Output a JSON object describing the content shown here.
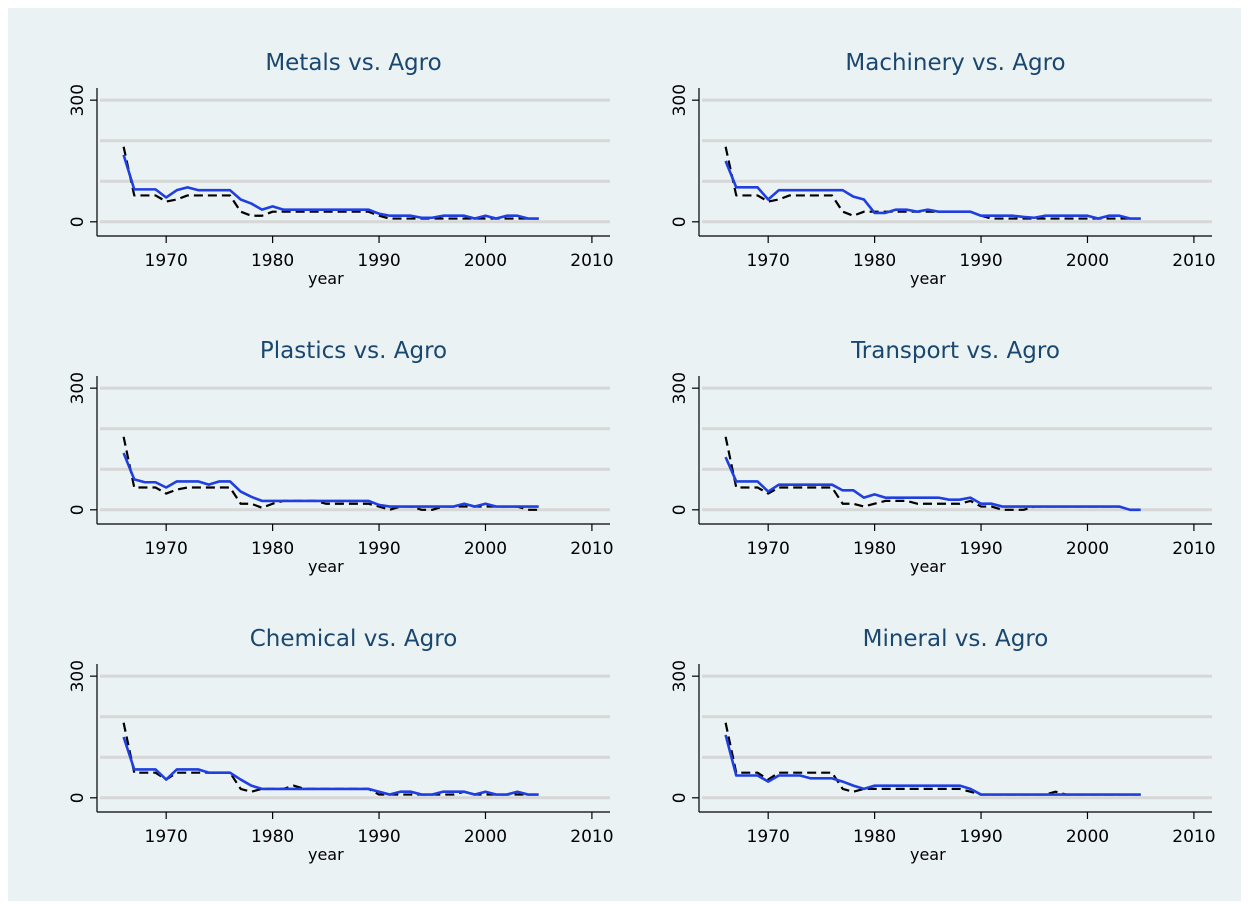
{
  "chart_data": [
    {
      "type": "line",
      "title": "Metals vs. Agro",
      "xlabel": "year",
      "x": [
        1966,
        1967,
        1968,
        1969,
        1970,
        1971,
        1972,
        1973,
        1974,
        1975,
        1976,
        1977,
        1978,
        1979,
        1980,
        1981,
        1982,
        1983,
        1984,
        1985,
        1986,
        1987,
        1988,
        1989,
        1990,
        1991,
        1992,
        1993,
        1994,
        1995,
        1996,
        1997,
        1998,
        1999,
        2000,
        2001,
        2002,
        2003,
        2004,
        2005
      ],
      "series": [
        {
          "color": "#000000",
          "dash": "dashed",
          "values": [
            185,
            65,
            65,
            65,
            50,
            55,
            65,
            65,
            65,
            65,
            65,
            25,
            15,
            15,
            25,
            25,
            25,
            25,
            25,
            25,
            25,
            25,
            25,
            25,
            15,
            8,
            8,
            8,
            8,
            8,
            8,
            8,
            8,
            8,
            8,
            8,
            8,
            8,
            8,
            8
          ]
        },
        {
          "color": "#1f3fe0",
          "dash": "solid",
          "values": [
            165,
            80,
            80,
            80,
            60,
            78,
            85,
            78,
            78,
            78,
            78,
            55,
            45,
            30,
            38,
            30,
            30,
            30,
            30,
            30,
            30,
            30,
            30,
            30,
            20,
            15,
            15,
            15,
            10,
            10,
            15,
            15,
            15,
            8,
            15,
            8,
            15,
            15,
            8,
            8
          ]
        }
      ],
      "xlim": [
        1963.5,
        2011.7
      ],
      "xticks": [
        1970,
        1980,
        1990,
        2000,
        2010
      ],
      "ylim": [
        -35,
        330
      ],
      "yticks": [
        0,
        300
      ],
      "grid_lines": [
        0,
        100,
        200,
        300
      ]
    },
    {
      "type": "line",
      "title": "Machinery vs. Agro",
      "xlabel": "year",
      "x": [
        1966,
        1967,
        1968,
        1969,
        1970,
        1971,
        1972,
        1973,
        1974,
        1975,
        1976,
        1977,
        1978,
        1979,
        1980,
        1981,
        1982,
        1983,
        1984,
        1985,
        1986,
        1987,
        1988,
        1989,
        1990,
        1991,
        1992,
        1993,
        1994,
        1995,
        1996,
        1997,
        1998,
        1999,
        2000,
        2001,
        2002,
        2003,
        2004,
        2005
      ],
      "series": [
        {
          "color": "#000000",
          "dash": "dashed",
          "values": [
            185,
            65,
            65,
            65,
            50,
            55,
            65,
            65,
            65,
            65,
            65,
            25,
            15,
            25,
            25,
            25,
            25,
            25,
            25,
            25,
            25,
            25,
            25,
            25,
            15,
            8,
            8,
            8,
            8,
            8,
            8,
            8,
            8,
            8,
            8,
            8,
            8,
            8,
            8,
            8
          ]
        },
        {
          "color": "#1f3fe0",
          "dash": "solid",
          "values": [
            150,
            85,
            85,
            85,
            55,
            78,
            78,
            78,
            78,
            78,
            78,
            78,
            62,
            55,
            22,
            22,
            30,
            30,
            25,
            30,
            25,
            25,
            25,
            25,
            15,
            15,
            15,
            15,
            12,
            10,
            15,
            15,
            15,
            15,
            15,
            8,
            15,
            15,
            8,
            8
          ]
        }
      ],
      "xlim": [
        1963.5,
        2011.7
      ],
      "xticks": [
        1970,
        1980,
        1990,
        2000,
        2010
      ],
      "ylim": [
        -35,
        330
      ],
      "yticks": [
        0,
        300
      ],
      "grid_lines": [
        0,
        100,
        200,
        300
      ]
    },
    {
      "type": "line",
      "title": "Plastics vs. Agro",
      "xlabel": "year",
      "x": [
        1966,
        1967,
        1968,
        1969,
        1970,
        1971,
        1972,
        1973,
        1974,
        1975,
        1976,
        1977,
        1978,
        1979,
        1980,
        1981,
        1982,
        1983,
        1984,
        1985,
        1986,
        1987,
        1988,
        1989,
        1990,
        1991,
        1992,
        1993,
        1994,
        1995,
        1996,
        1997,
        1998,
        1999,
        2000,
        2001,
        2002,
        2003,
        2004,
        2005
      ],
      "series": [
        {
          "color": "#000000",
          "dash": "dashed",
          "values": [
            180,
            55,
            55,
            55,
            40,
            50,
            55,
            55,
            55,
            55,
            55,
            15,
            15,
            5,
            15,
            22,
            22,
            22,
            22,
            15,
            15,
            15,
            15,
            15,
            8,
            0,
            8,
            8,
            0,
            0,
            8,
            8,
            8,
            8,
            8,
            8,
            8,
            8,
            0,
            0
          ]
        },
        {
          "color": "#1f3fe0",
          "dash": "solid",
          "values": [
            140,
            75,
            68,
            68,
            55,
            70,
            70,
            70,
            62,
            70,
            70,
            45,
            32,
            22,
            22,
            22,
            22,
            22,
            22,
            22,
            22,
            22,
            22,
            22,
            12,
            8,
            8,
            8,
            8,
            8,
            8,
            8,
            15,
            8,
            15,
            8,
            8,
            8,
            8,
            8
          ]
        }
      ],
      "xlim": [
        1963.5,
        2011.7
      ],
      "xticks": [
        1970,
        1980,
        1990,
        2000,
        2010
      ],
      "ylim": [
        -35,
        330
      ],
      "yticks": [
        0,
        300
      ],
      "grid_lines": [
        0,
        100,
        200,
        300
      ]
    },
    {
      "type": "line",
      "title": "Transport vs. Agro",
      "xlabel": "year",
      "x": [
        1966,
        1967,
        1968,
        1969,
        1970,
        1971,
        1972,
        1973,
        1974,
        1975,
        1976,
        1977,
        1978,
        1979,
        1980,
        1981,
        1982,
        1983,
        1984,
        1985,
        1986,
        1987,
        1988,
        1989,
        1990,
        1991,
        1992,
        1993,
        1994,
        1995,
        1996,
        1997,
        1998,
        1999,
        2000,
        2001,
        2002,
        2003,
        2004,
        2005
      ],
      "series": [
        {
          "color": "#000000",
          "dash": "dashed",
          "values": [
            180,
            55,
            55,
            55,
            40,
            55,
            55,
            55,
            55,
            55,
            55,
            15,
            15,
            8,
            15,
            22,
            22,
            22,
            15,
            15,
            15,
            15,
            15,
            22,
            8,
            8,
            0,
            0,
            0,
            8,
            8,
            8,
            8,
            8,
            8,
            8,
            8,
            8,
            0,
            0
          ]
        },
        {
          "color": "#1f3fe0",
          "dash": "solid",
          "values": [
            130,
            70,
            70,
            70,
            45,
            62,
            62,
            62,
            62,
            62,
            62,
            48,
            48,
            30,
            38,
            30,
            30,
            30,
            30,
            30,
            30,
            25,
            25,
            30,
            15,
            15,
            8,
            8,
            8,
            8,
            8,
            8,
            8,
            8,
            8,
            8,
            8,
            8,
            0,
            0
          ]
        }
      ],
      "xlim": [
        1963.5,
        2011.7
      ],
      "xticks": [
        1970,
        1980,
        1990,
        2000,
        2010
      ],
      "ylim": [
        -35,
        330
      ],
      "yticks": [
        0,
        300
      ],
      "grid_lines": [
        0,
        100,
        200,
        300
      ]
    },
    {
      "type": "line",
      "title": "Chemical vs. Agro",
      "xlabel": "year",
      "x": [
        1966,
        1967,
        1968,
        1969,
        1970,
        1971,
        1972,
        1973,
        1974,
        1975,
        1976,
        1977,
        1978,
        1979,
        1980,
        1981,
        1982,
        1983,
        1984,
        1985,
        1986,
        1987,
        1988,
        1989,
        1990,
        1991,
        1992,
        1993,
        1994,
        1995,
        1996,
        1997,
        1998,
        1999,
        2000,
        2001,
        2002,
        2003,
        2004,
        2005
      ],
      "series": [
        {
          "color": "#000000",
          "dash": "dashed",
          "values": [
            185,
            62,
            62,
            62,
            45,
            62,
            62,
            62,
            62,
            62,
            62,
            22,
            15,
            22,
            22,
            22,
            30,
            22,
            22,
            22,
            22,
            22,
            22,
            22,
            8,
            8,
            8,
            8,
            8,
            8,
            8,
            8,
            15,
            8,
            8,
            8,
            8,
            8,
            8,
            8
          ]
        },
        {
          "color": "#1f3fe0",
          "dash": "solid",
          "values": [
            150,
            70,
            70,
            70,
            45,
            70,
            70,
            70,
            62,
            62,
            62,
            45,
            30,
            22,
            22,
            22,
            22,
            22,
            22,
            22,
            22,
            22,
            22,
            22,
            15,
            8,
            15,
            15,
            8,
            8,
            15,
            15,
            15,
            8,
            15,
            8,
            8,
            15,
            8,
            8
          ]
        }
      ],
      "xlim": [
        1963.5,
        2011.7
      ],
      "xticks": [
        1970,
        1980,
        1990,
        2000,
        2010
      ],
      "ylim": [
        -35,
        330
      ],
      "yticks": [
        0,
        300
      ],
      "grid_lines": [
        0,
        100,
        200,
        300
      ]
    },
    {
      "type": "line",
      "title": "Mineral vs. Agro",
      "xlabel": "year",
      "x": [
        1966,
        1967,
        1968,
        1969,
        1970,
        1971,
        1972,
        1973,
        1974,
        1975,
        1976,
        1977,
        1978,
        1979,
        1980,
        1981,
        1982,
        1983,
        1984,
        1985,
        1986,
        1987,
        1988,
        1989,
        1990,
        1991,
        1992,
        1993,
        1994,
        1995,
        1996,
        1997,
        1998,
        1999,
        2000,
        2001,
        2002,
        2003,
        2004,
        2005
      ],
      "series": [
        {
          "color": "#000000",
          "dash": "dashed",
          "values": [
            185,
            62,
            62,
            62,
            45,
            62,
            62,
            62,
            62,
            62,
            62,
            22,
            15,
            22,
            22,
            22,
            22,
            22,
            22,
            22,
            22,
            22,
            22,
            15,
            8,
            8,
            8,
            8,
            8,
            8,
            8,
            15,
            8,
            8,
            8,
            8,
            8,
            8,
            8,
            8
          ]
        },
        {
          "color": "#1f3fe0",
          "dash": "solid",
          "values": [
            155,
            55,
            55,
            55,
            40,
            55,
            55,
            55,
            48,
            48,
            48,
            40,
            30,
            22,
            30,
            30,
            30,
            30,
            30,
            30,
            30,
            30,
            30,
            22,
            8,
            8,
            8,
            8,
            8,
            8,
            8,
            8,
            8,
            8,
            8,
            8,
            8,
            8,
            8,
            8
          ]
        }
      ],
      "xlim": [
        1963.5,
        2011.7
      ],
      "xticks": [
        1970,
        1980,
        1990,
        2000,
        2010
      ],
      "ylim": [
        -35,
        330
      ],
      "yticks": [
        0,
        300
      ],
      "grid_lines": [
        0,
        100,
        200,
        300
      ]
    }
  ]
}
